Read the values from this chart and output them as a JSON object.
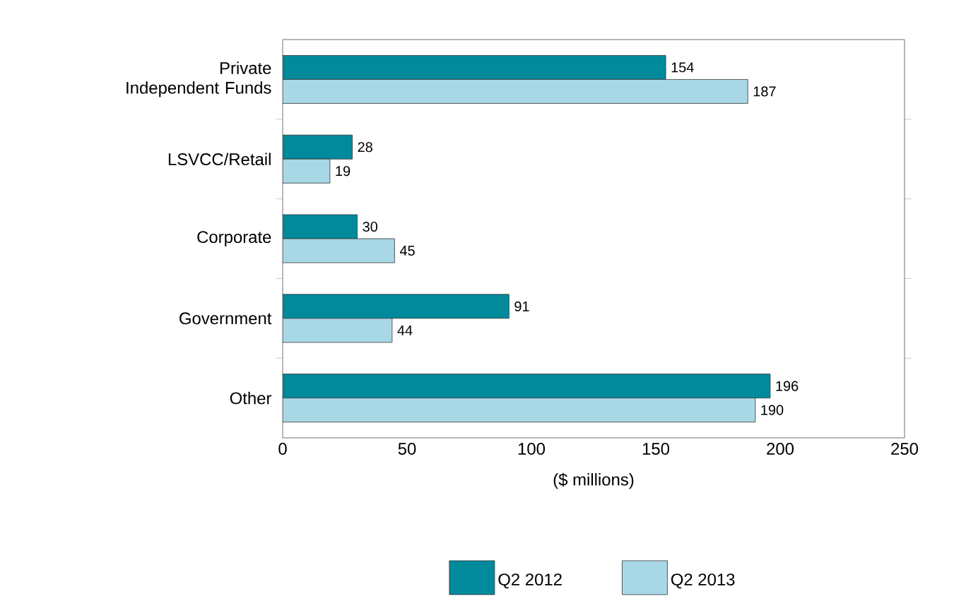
{
  "chart_data": {
    "type": "bar",
    "orientation": "horizontal",
    "xlabel": "($ millions)",
    "categories": [
      "Private Independent Funds",
      "LSVCC/Retail",
      "Corporate",
      "Government",
      "Other"
    ],
    "series": [
      {
        "name": "Q2 2012",
        "color": "#008a9c",
        "values": [
          154,
          28,
          30,
          91,
          196
        ]
      },
      {
        "name": "Q2 2013",
        "color": "#a8d8e6",
        "values": [
          187,
          19,
          45,
          44,
          190
        ]
      }
    ],
    "xlim": [
      0,
      250
    ],
    "xticks": [
      0,
      50,
      100,
      150,
      200,
      250
    ],
    "data_labels": true,
    "legend": "bottom",
    "grid": false
  }
}
